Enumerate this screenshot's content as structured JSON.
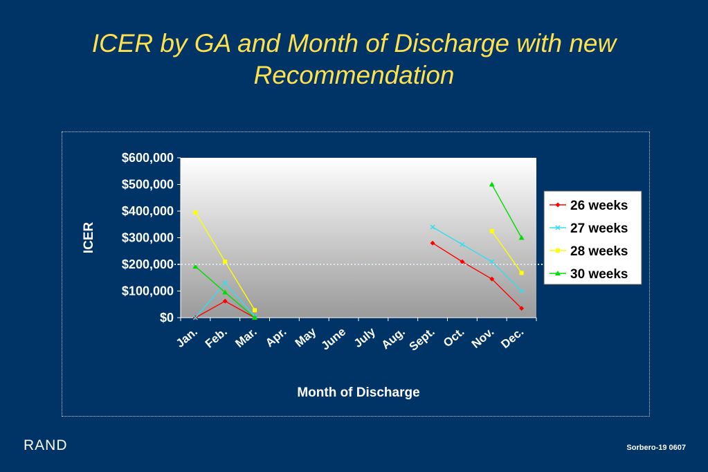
{
  "slide": {
    "title_line1": "ICER by GA and Month of Discharge with new",
    "title_line2": "Recommendation",
    "logo": "RAND",
    "footer": "Sorbero-19  0607"
  },
  "chart_data": {
    "type": "line",
    "xlabel": "Month of Discharge",
    "ylabel": "ICER",
    "categories": [
      "Jan.",
      "Feb.",
      "Mar.",
      "Apr.",
      "May",
      "June",
      "July",
      "Aug.",
      "Sept.",
      "Oct.",
      "Nov.",
      "Dec."
    ],
    "ylim": [
      0,
      600000
    ],
    "yticks": [
      0,
      100000,
      200000,
      300000,
      400000,
      500000,
      600000
    ],
    "ytick_labels": [
      "$0",
      "$100,000",
      "$200,000",
      "$300,000",
      "$400,000",
      "$500,000",
      "$600,000"
    ],
    "reference_line": 200000,
    "legend_position": "right",
    "series": [
      {
        "name": "26 weeks",
        "color": "#ff0000",
        "marker": "diamond",
        "values": [
          0,
          62000,
          0,
          null,
          null,
          null,
          null,
          null,
          280000,
          210000,
          145000,
          35000
        ]
      },
      {
        "name": "27 weeks",
        "color": "#33ddee",
        "marker": "x",
        "values": [
          0,
          130000,
          5000,
          null,
          null,
          null,
          null,
          null,
          340000,
          275000,
          210000,
          100000
        ]
      },
      {
        "name": "28 weeks",
        "color": "#ffff00",
        "marker": "square",
        "values": [
          395000,
          210000,
          28000,
          null,
          null,
          null,
          null,
          null,
          null,
          null,
          325000,
          168000
        ]
      },
      {
        "name": "30 weeks",
        "color": "#00dd00",
        "marker": "triangle",
        "values": [
          192000,
          95000,
          0,
          null,
          null,
          null,
          null,
          null,
          null,
          null,
          500000,
          300000
        ]
      }
    ]
  }
}
